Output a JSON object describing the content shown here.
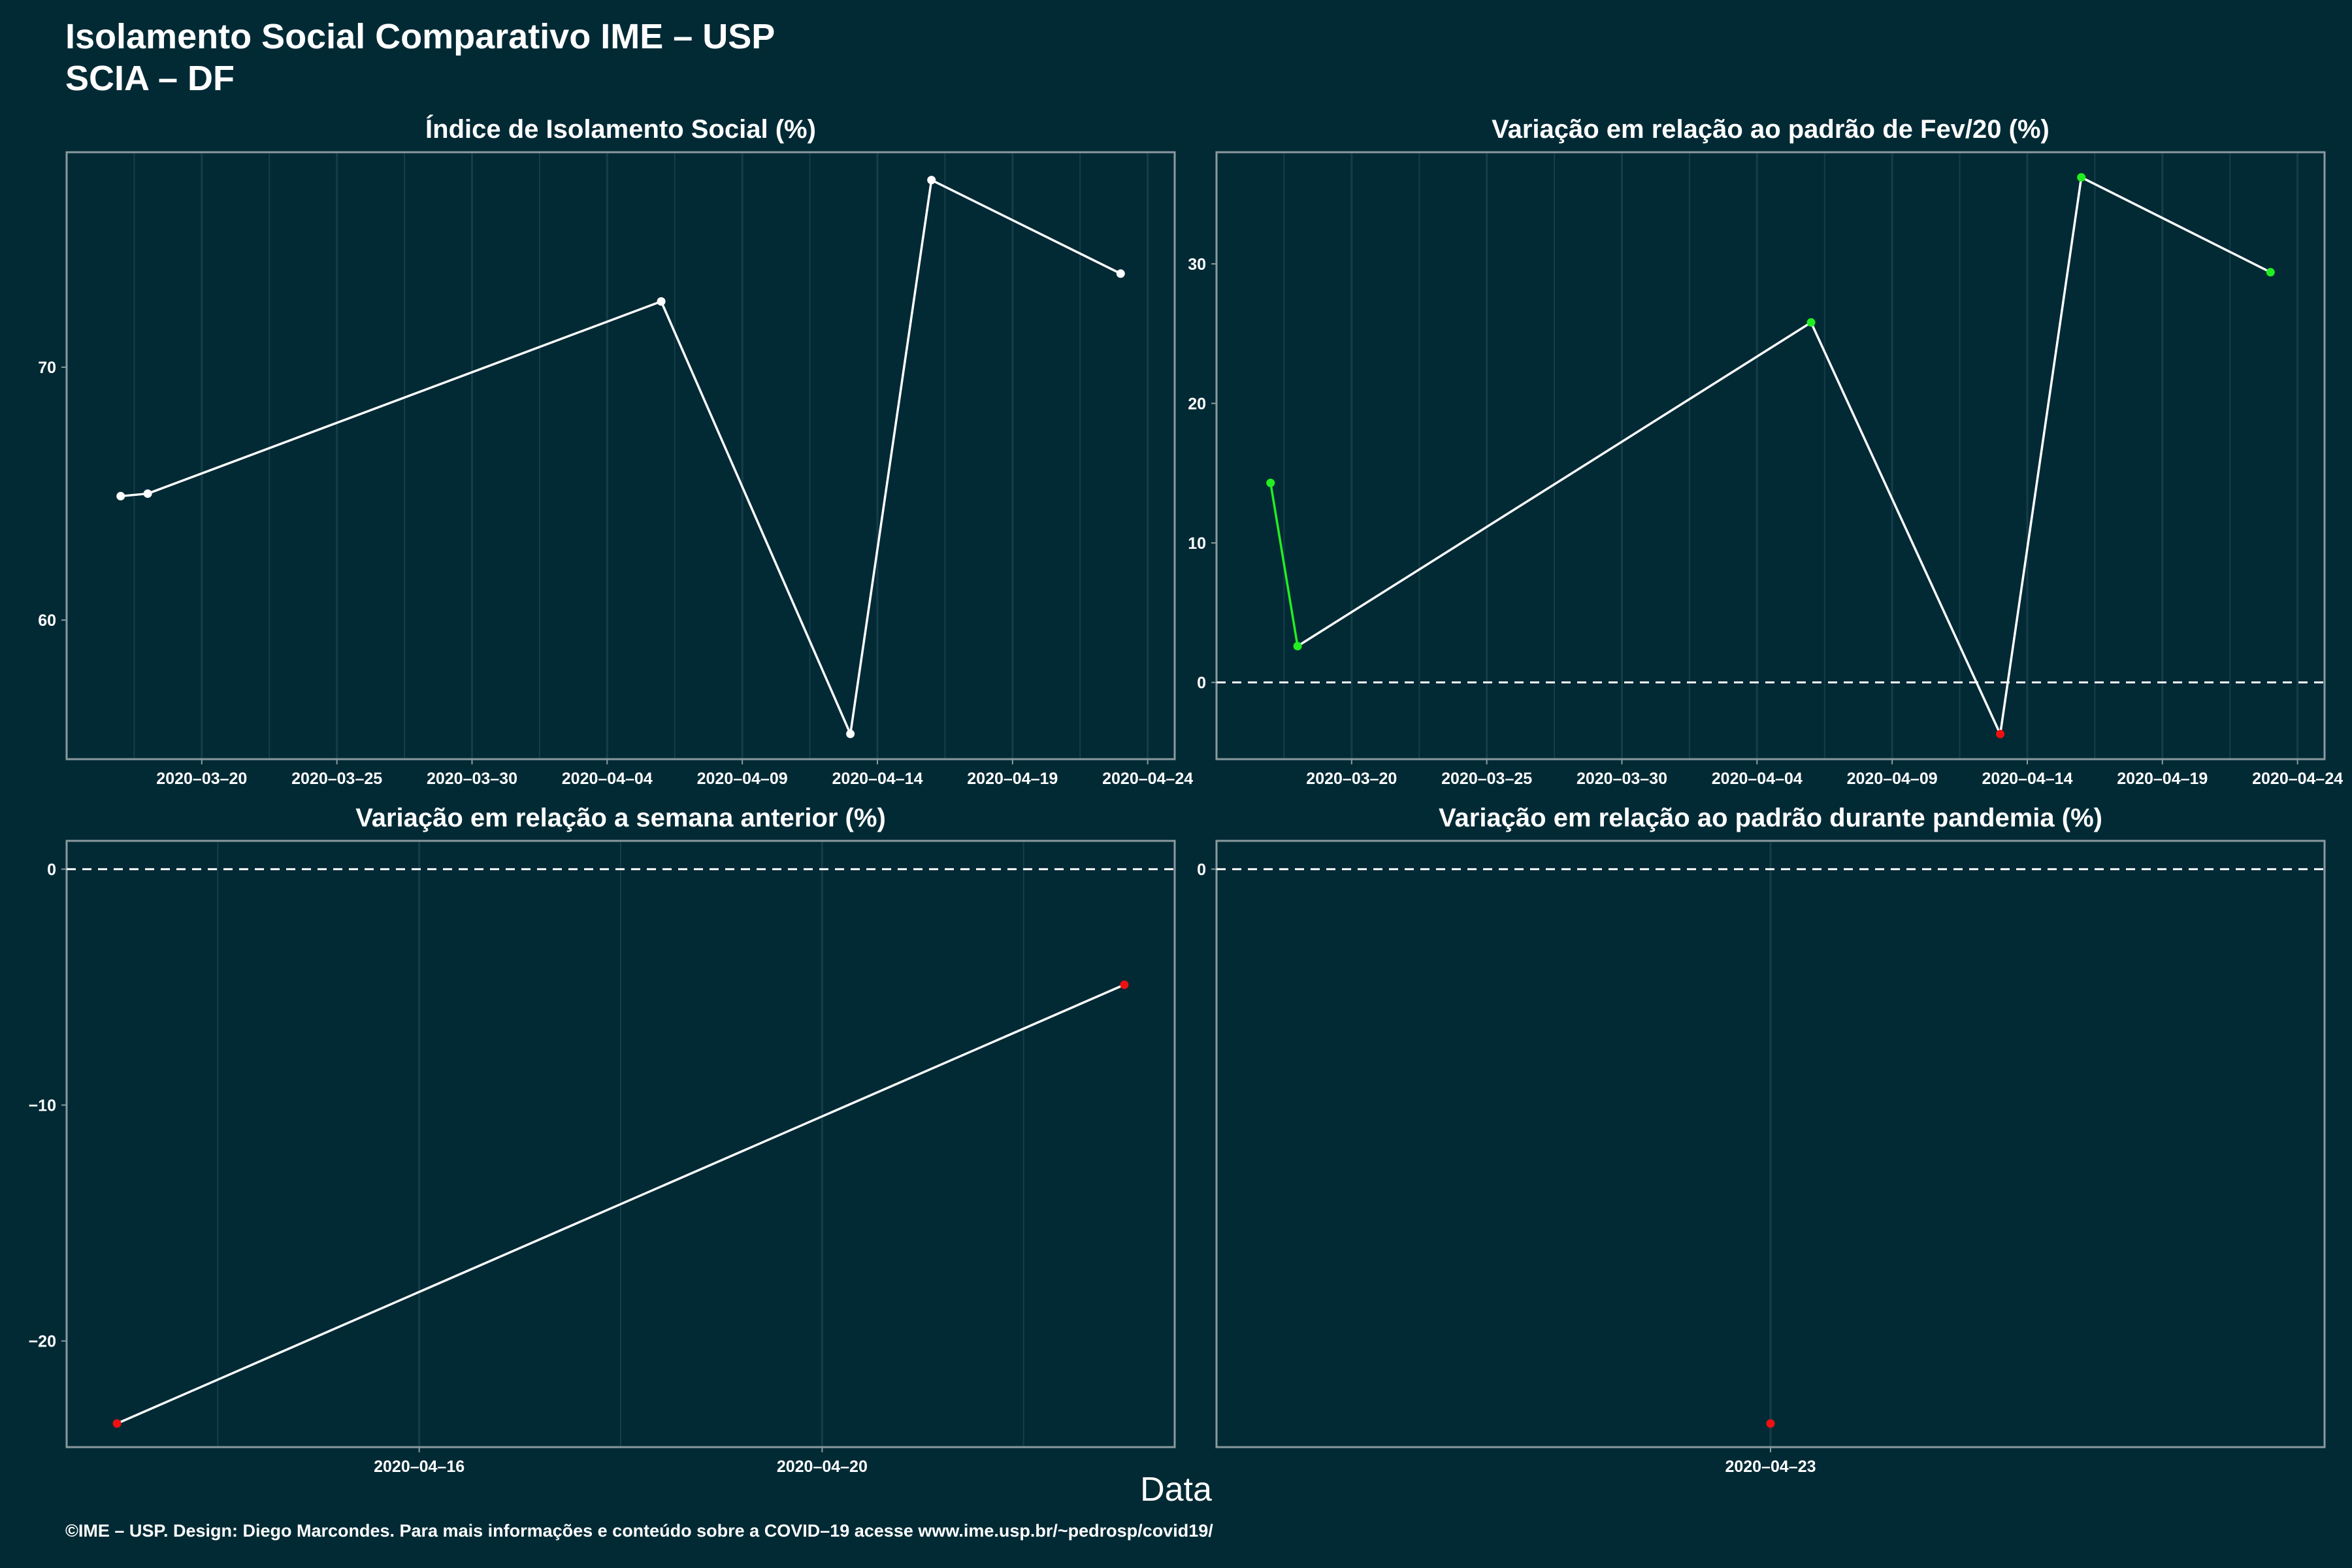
{
  "title": {
    "line1": "Isolamento Social Comparativo IME – USP",
    "line2": "SCIA – DF"
  },
  "xlabel": "Data",
  "caption": "©IME – USP. Design: Diego Marcondes. Para mais informações e conteúdo sobre a COVID–19 acesse www.ime.usp.br/~pedrosp/covid19/",
  "colors": {
    "background": "#022a35",
    "line": "#ffffff",
    "positive": "#22ee22",
    "negative": "#ee1111",
    "axis": "#8a9a9e",
    "grid": "#163d48"
  },
  "chart_data": [
    {
      "type": "line",
      "title": "Índice de Isolamento Social (%)",
      "x": [
        "2020-03-17",
        "2020-03-18",
        "2020-04-06",
        "2020-04-13",
        "2020-04-16",
        "2020-04-23"
      ],
      "y": [
        64.9,
        65.0,
        72.6,
        55.5,
        77.4,
        73.7
      ],
      "point_colors": [
        "white",
        "white",
        "white",
        "white",
        "white",
        "white"
      ],
      "xlim": [
        "2020-03-15",
        "2020-04-25"
      ],
      "ylim": [
        54.5,
        78.5
      ],
      "yticks": [
        60,
        70
      ],
      "xticks": [
        "2020-03-20",
        "2020-03-25",
        "2020-03-30",
        "2020-04-04",
        "2020-04-09",
        "2020-04-14",
        "2020-04-19",
        "2020-04-24"
      ],
      "xticklabels": [
        "2020–03–20",
        "2020–03–25",
        "2020–03–30",
        "2020–04–04",
        "2020–04–09",
        "2020–04–14",
        "2020–04–19",
        "2020–04–24"
      ],
      "ref_line": null
    },
    {
      "type": "line",
      "title": "Variação em relação ao padrão de Fev/20 (%)",
      "x": [
        "2020-03-17",
        "2020-03-18",
        "2020-04-06",
        "2020-04-13",
        "2020-04-16",
        "2020-04-23"
      ],
      "y": [
        14.3,
        2.6,
        25.8,
        -3.7,
        36.2,
        29.4
      ],
      "point_colors": [
        "green",
        "green",
        "green",
        "red",
        "green",
        "green"
      ],
      "segment_colors": [
        "green",
        "white",
        "white",
        "white",
        "white"
      ],
      "xlim": [
        "2020-03-15",
        "2020-04-25"
      ],
      "ylim": [
        -5.5,
        38
      ],
      "yticks": [
        0,
        10,
        20,
        30
      ],
      "xticks": [
        "2020-03-20",
        "2020-03-25",
        "2020-03-30",
        "2020-04-04",
        "2020-04-09",
        "2020-04-14",
        "2020-04-19",
        "2020-04-24"
      ],
      "xticklabels": [
        "2020–03–20",
        "2020–03–25",
        "2020–03–30",
        "2020–04–04",
        "2020–04–09",
        "2020–04–14",
        "2020–04–19",
        "2020–04–24"
      ],
      "ref_line": 0
    },
    {
      "type": "line",
      "title": "Variação em relação a semana anterior (%)",
      "x": [
        "2020-04-13",
        "2020-04-23"
      ],
      "y": [
        -23.5,
        -4.9
      ],
      "point_colors": [
        "red",
        "red"
      ],
      "xlim": [
        "2020-04-12.5",
        "2020-04-23.5"
      ],
      "ylim": [
        -24.5,
        1.2
      ],
      "yticks": [
        -20,
        -10,
        0
      ],
      "xticks": [
        "2020-04-16",
        "2020-04-20"
      ],
      "xticklabels": [
        "2020–04–16",
        "2020–04–20"
      ],
      "ref_line": 0
    },
    {
      "type": "scatter",
      "title": "Variação em relação ao padrão durante pandemia (%)",
      "x": [
        "2020-04-23"
      ],
      "y": [
        -23.5
      ],
      "point_colors": [
        "red"
      ],
      "xlim": [
        "2020-04-22.45",
        "2020-04-23.55"
      ],
      "ylim": [
        -24.5,
        1.2
      ],
      "yticks": [
        0
      ],
      "xticks": [
        "2020-04-23"
      ],
      "xticklabels": [
        "2020–04–23"
      ],
      "ref_line": 0
    }
  ]
}
